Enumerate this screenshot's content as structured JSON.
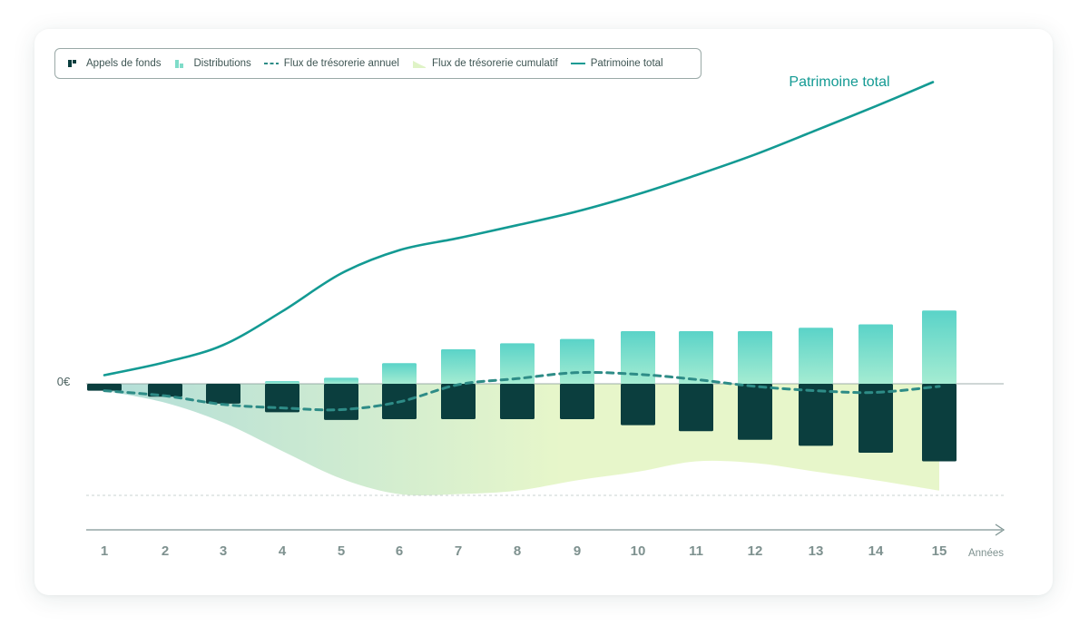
{
  "chart_data": {
    "type": "bar",
    "categories": [
      "1",
      "2",
      "3",
      "4",
      "5",
      "6",
      "7",
      "8",
      "9",
      "10",
      "11",
      "12",
      "13",
      "14",
      "15"
    ],
    "xlabel": "Années",
    "zero_label": "0€",
    "series": [
      {
        "name": "Appels de fonds",
        "kind": "bar",
        "values": [
          -0.8,
          -1.5,
          -2.3,
          -3.3,
          -4.2,
          -4.1,
          -4.1,
          -4.1,
          -4.1,
          -4.8,
          -5.5,
          -6.5,
          -7.2,
          -8.0,
          -9.0
        ]
      },
      {
        "name": "Distributions",
        "kind": "bar",
        "values": [
          0,
          0,
          0,
          0.3,
          0.7,
          2.4,
          4.0,
          4.7,
          5.2,
          6.1,
          6.1,
          6.1,
          6.5,
          6.9,
          8.5
        ]
      },
      {
        "name": "Flux de trésorerie annuel",
        "kind": "line",
        "values": [
          -0.8,
          -1.4,
          -2.4,
          -2.8,
          -3.0,
          -2.1,
          -0.1,
          0.6,
          1.3,
          1.1,
          0.5,
          -0.3,
          -0.8,
          -1.0,
          -0.3
        ]
      },
      {
        "name": "Flux de trésorerie cumulatif",
        "kind": "area",
        "values": [
          -0.8,
          -2.2,
          -4.5,
          -7.8,
          -11.0,
          -12.8,
          -12.8,
          -12.4,
          -11.2,
          -10.2,
          -9.0,
          -9.2,
          -10.2,
          -11.2,
          -12.4
        ]
      },
      {
        "name": "Patrimoine total",
        "kind": "line",
        "values": [
          1.0,
          2.5,
          4.5,
          8.4,
          12.8,
          15.5,
          16.9,
          18.4,
          20.0,
          22.0,
          24.2,
          26.6,
          29.4,
          32.2,
          35.0
        ]
      }
    ],
    "annotation": "Patrimoine total",
    "colors": {
      "appels": "#0b3e3e",
      "dist_top": "#5ad3c8",
      "dist_bottom": "#a5ecd2",
      "annual": "#2e8c87",
      "cum_left": "#aedcd6",
      "cum_right": "#e6f6c7",
      "patrimoine": "#139a93",
      "axis": "#7f9593",
      "ticks": "#7e918f"
    }
  },
  "legend": {
    "appels": "Appels de fonds",
    "distributions": "Distributions",
    "annual": "Flux de trésorerie annuel",
    "cumulative": "Flux de trésorerie cumulatif",
    "patrimoine": "Patrimoine total"
  }
}
